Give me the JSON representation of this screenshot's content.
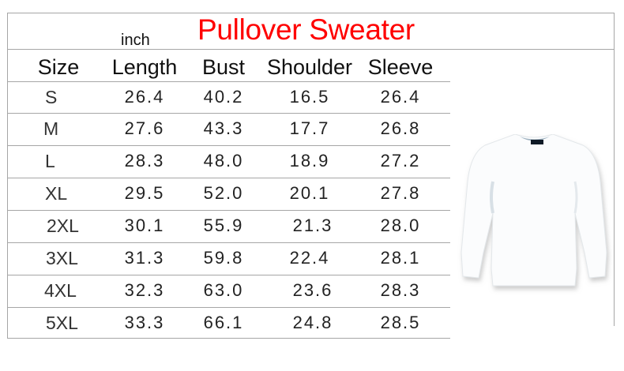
{
  "title": "Pullover Sweater",
  "unit": "inch",
  "title_color": "#ff0000",
  "columns": [
    "Size",
    "Length",
    "Bust",
    "Shoulder",
    "Sleeve"
  ],
  "rows": [
    [
      "S",
      "26.4",
      "40.2",
      "16.5",
      "26.4"
    ],
    [
      "M",
      "27.6",
      "43.3",
      "17.7",
      "26.8"
    ],
    [
      "L",
      "28.3",
      "48.0",
      "18.9",
      "27.2"
    ],
    [
      "XL",
      "29.5",
      "52.0",
      "20.1",
      "27.8"
    ],
    [
      "2XL",
      "30.1",
      "55.9",
      "21.3",
      "28.0"
    ],
    [
      "3XL",
      "31.3",
      "59.8",
      "22.4",
      "28.1"
    ],
    [
      "4XL",
      "32.3",
      "63.0",
      "23.6",
      "28.3"
    ],
    [
      "5XL",
      "33.3",
      "66.1",
      "24.8",
      "28.5"
    ]
  ],
  "product_image": "white-crewneck-sweater"
}
